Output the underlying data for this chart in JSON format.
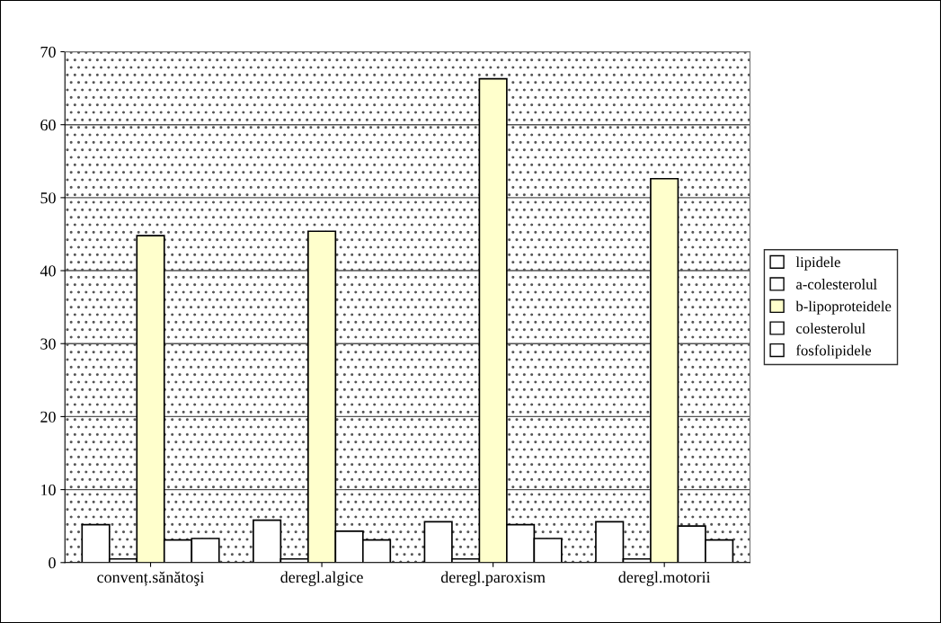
{
  "chart_data": {
    "type": "bar",
    "categories": [
      "convenț.sănătoşi",
      "deregl.algice",
      "deregl.paroxism",
      "deregl.motorii"
    ],
    "series": [
      {
        "name": "lipidele",
        "color": "#ffffff",
        "values": [
          5.2,
          5.8,
          5.6,
          5.6
        ]
      },
      {
        "name": "a-colesterolul",
        "color": "#ffffff",
        "values": [
          0.5,
          0.5,
          0.5,
          0.5
        ]
      },
      {
        "name": "b-lipoproteidele",
        "color": "#ffffcc",
        "values": [
          44.8,
          45.4,
          66.3,
          52.6
        ]
      },
      {
        "name": "colesterolul",
        "color": "#ffffff",
        "values": [
          3.1,
          4.3,
          5.2,
          5.0
        ]
      },
      {
        "name": "fosfolipidele",
        "color": "#ffffff",
        "values": [
          3.3,
          3.1,
          3.3,
          3.1
        ]
      }
    ],
    "ylim": [
      0,
      70
    ],
    "yticks": [
      0,
      10,
      20,
      30,
      40,
      50,
      60,
      70
    ],
    "grid": "y",
    "legend": "right"
  }
}
